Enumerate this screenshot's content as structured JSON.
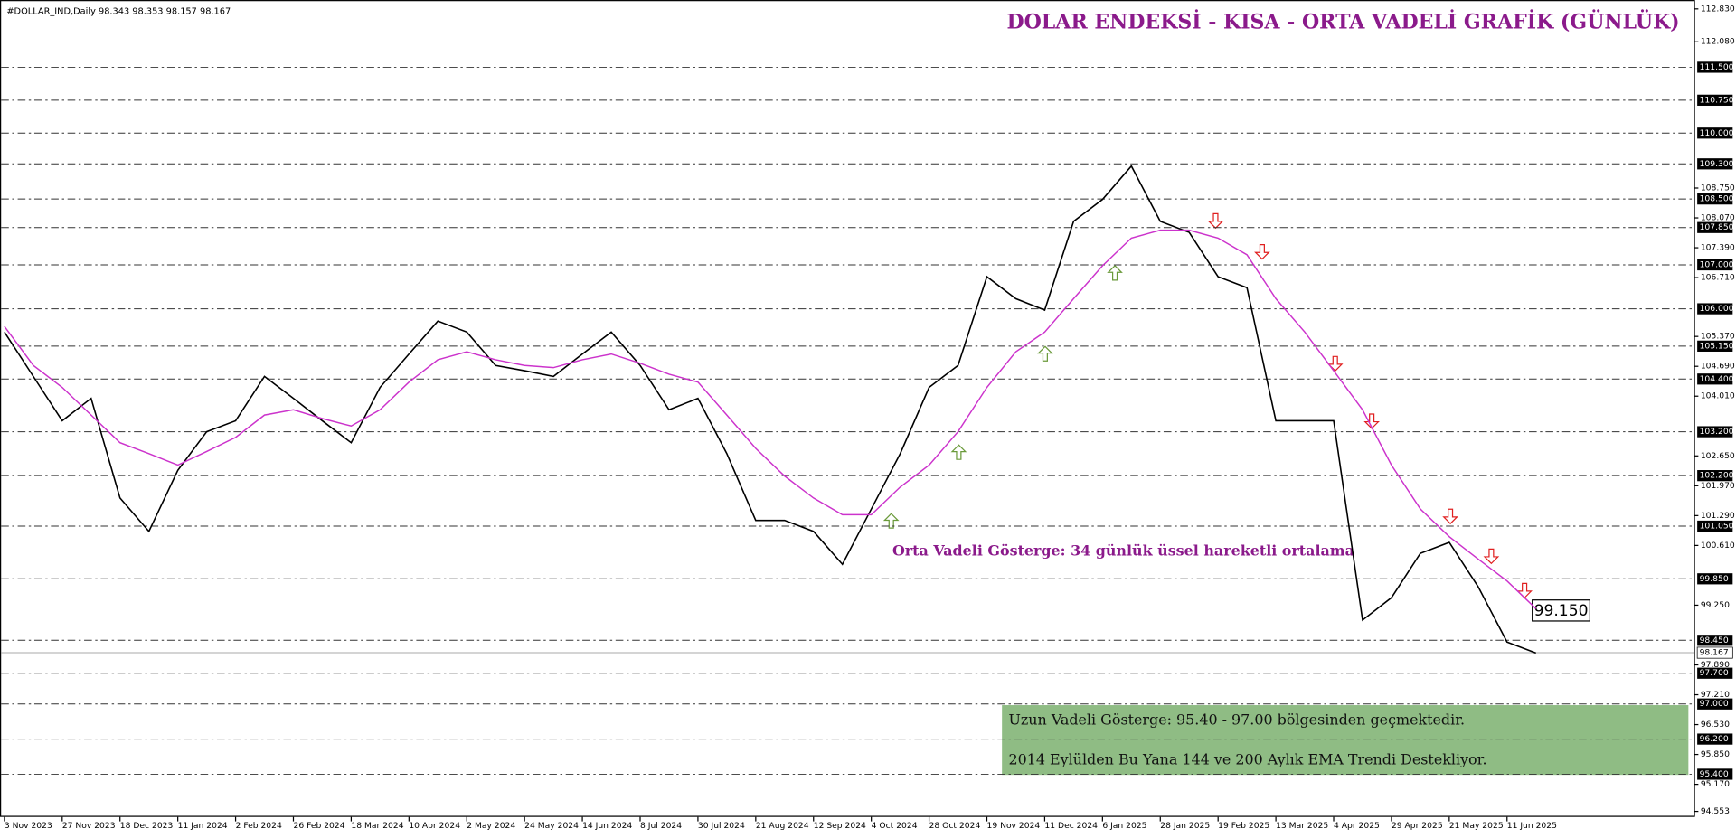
{
  "chart_data": {
    "type": "line",
    "header": "#DOLLAR_IND,Daily  98.343 98.353 98.157 98.167",
    "title": "DOLAR ENDEKSİ - KISA - ORTA VADELİ GRAFİK (GÜNLÜK)",
    "categories": [
      "3 Nov 2023",
      null,
      "27 Nov 2023",
      null,
      "18 Dec 2023",
      null,
      "11 Jan 2024",
      null,
      "2 Feb 2024",
      null,
      "26 Feb 2024",
      null,
      "18 Mar 2024",
      null,
      "10 Apr 2024",
      null,
      "2 May 2024",
      null,
      "24 May 2024",
      null,
      "14 Jun 2024",
      null,
      "8 Jul 2024",
      null,
      "30 Jul 2024",
      null,
      "21 Aug 2024",
      null,
      "12 Sep 2024",
      null,
      "4 Oct 2024",
      null,
      "28 Oct 2024",
      null,
      "19 Nov 2024",
      null,
      "11 Dec 2024",
      null,
      "6 Jan 2025",
      null,
      "28 Jan 2025",
      null,
      "19 Feb 2025",
      null,
      "13 Mar 2025",
      null,
      "4 Apr 2025",
      null,
      "29 Apr 2025",
      null,
      "21 May 2025",
      null,
      "11 Jun 2025",
      null
    ],
    "series": [
      {
        "color": "#000000",
        "values": [
          105.47,
          104.46,
          103.45,
          103.96,
          101.69,
          100.93,
          102.32,
          103.2,
          103.45,
          104.46,
          103.96,
          103.45,
          102.95,
          104.21,
          104.97,
          105.72,
          105.47,
          104.71,
          104.59,
          104.46,
          104.97,
          105.47,
          104.71,
          103.7,
          103.96,
          102.7,
          101.18,
          101.18,
          100.93,
          100.18,
          101.44,
          102.7,
          104.21,
          104.71,
          106.73,
          106.23,
          105.97,
          107.99,
          108.49,
          109.25,
          107.99,
          107.74,
          106.73,
          106.48,
          103.45,
          103.45,
          103.45,
          98.91,
          99.42,
          100.43,
          100.68,
          99.67,
          98.41,
          98.16
        ]
      },
      {
        "color": "#cc33cc",
        "values": [
          105.6,
          104.71,
          104.21,
          103.58,
          102.95,
          102.7,
          102.44,
          102.75,
          103.07,
          103.58,
          103.7,
          103.5,
          103.33,
          103.7,
          104.33,
          104.84,
          105.02,
          104.84,
          104.71,
          104.66,
          104.84,
          104.97,
          104.76,
          104.51,
          104.33,
          103.58,
          102.82,
          102.19,
          101.69,
          101.31,
          101.31,
          101.94,
          102.44,
          103.2,
          104.21,
          105.02,
          105.47,
          106.23,
          106.98,
          107.61,
          107.79,
          107.79,
          107.61,
          107.23,
          106.23,
          105.47,
          104.59,
          103.7,
          102.44,
          101.44,
          100.81,
          100.3,
          99.8,
          99.17
        ]
      }
    ],
    "ylim": [
      94.553,
      112.83
    ],
    "yticks": [
      {
        "value": 112.83,
        "label": "112.830"
      },
      {
        "value": 112.08,
        "label": "112.080"
      },
      {
        "value": 108.75,
        "label": "108.750"
      },
      {
        "value": 108.07,
        "label": "108.070"
      },
      {
        "value": 107.39,
        "label": "107.390"
      },
      {
        "value": 106.71,
        "label": "106.710"
      },
      {
        "value": 105.37,
        "label": "105.370"
      },
      {
        "value": 104.69,
        "label": "104.690"
      },
      {
        "value": 104.01,
        "label": "104.010"
      },
      {
        "value": 102.65,
        "label": "102.650"
      },
      {
        "value": 101.97,
        "label": "101.970"
      },
      {
        "value": 101.29,
        "label": "101.290"
      },
      {
        "value": 100.61,
        "label": "100.610"
      },
      {
        "value": 99.25,
        "label": "99.250"
      },
      {
        "value": 97.89,
        "label": "97.890"
      },
      {
        "value": 97.21,
        "label": "97.210"
      },
      {
        "value": 96.53,
        "label": "96.530"
      },
      {
        "value": 95.85,
        "label": "95.850"
      },
      {
        "value": 95.17,
        "label": "95.170"
      },
      94.553
    ],
    "levels": [
      {
        "value": 111.5,
        "label": "111.500"
      },
      {
        "value": 110.75,
        "label": "110.750"
      },
      {
        "value": 110,
        "label": "110.000"
      },
      {
        "value": 109.3,
        "label": "109.300"
      },
      {
        "value": 108.5,
        "label": "108.500"
      },
      {
        "value": 107.85,
        "label": "107.850"
      },
      {
        "value": 107,
        "label": "107.000"
      },
      {
        "value": 106,
        "label": "106.000"
      },
      {
        "value": 105.15,
        "label": "105.150"
      },
      {
        "value": 104.4,
        "label": "104.400"
      },
      {
        "value": 103.2,
        "label": "103.200"
      },
      {
        "value": 102.2,
        "label": "102.200"
      },
      {
        "value": 101.05,
        "label": "101.050"
      },
      {
        "value": 99.85,
        "label": "99.850"
      },
      {
        "value": 98.45,
        "label": "98.450"
      },
      {
        "value": 97.7,
        "label": "97.700"
      },
      {
        "value": 97,
        "label": "97.000"
      },
      {
        "value": 96.2,
        "label": "96.200"
      },
      {
        "value": 95.4,
        "label": "95.400"
      }
    ],
    "current_price": 98.167,
    "ema_label": "99.150",
    "ema_note": "Orta Vadeli Gösterge: 34 günlük üssel hareketli ortalama",
    "box_lines": [
      "Uzun Vadeli Gösterge: 95.40 - 97.00 bölgesinden geçmektedir.",
      "2014 Eylülden Bu Yana 144 ve 200 Aylık EMA Trendi Destekliyor."
    ]
  }
}
